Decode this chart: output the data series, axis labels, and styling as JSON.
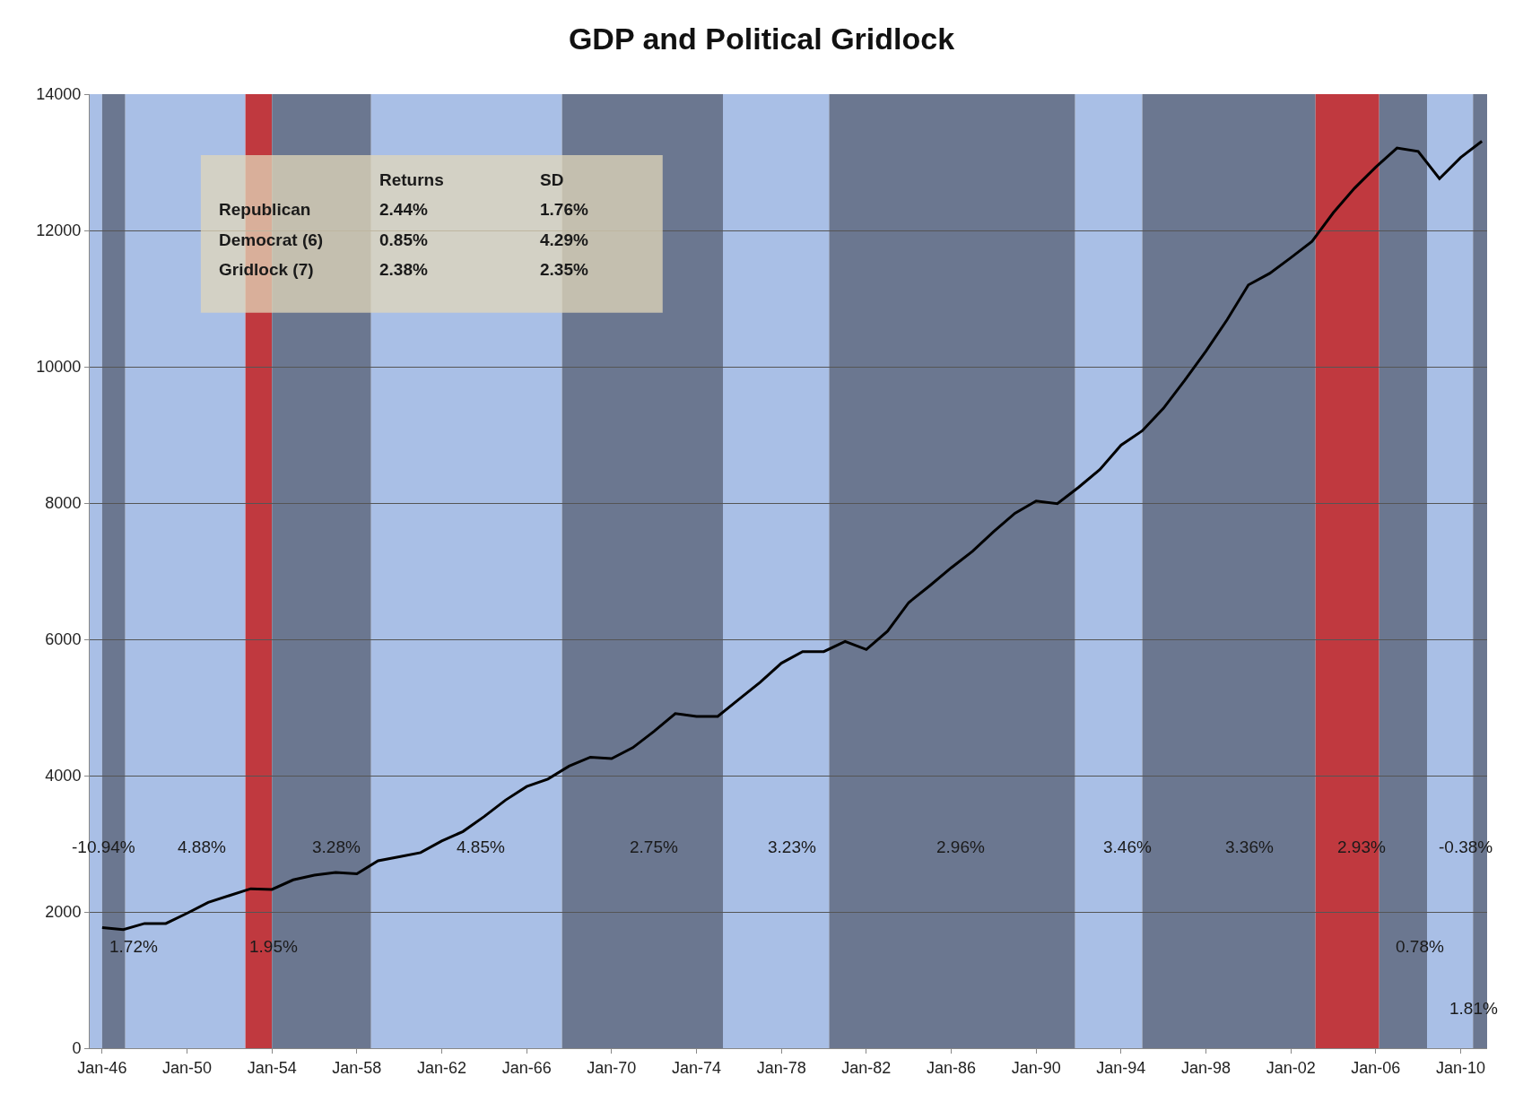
{
  "chart_data": {
    "type": "line",
    "title": "GDP and Political Gridlock",
    "x": [
      "1946-01",
      "1947-01",
      "1948-01",
      "1949-01",
      "1950-01",
      "1951-01",
      "1952-01",
      "1953-01",
      "1954-01",
      "1955-01",
      "1956-01",
      "1957-01",
      "1958-01",
      "1959-01",
      "1960-01",
      "1961-01",
      "1962-01",
      "1963-01",
      "1964-01",
      "1965-01",
      "1966-01",
      "1967-01",
      "1968-01",
      "1969-01",
      "1970-01",
      "1971-01",
      "1972-01",
      "1973-01",
      "1974-01",
      "1975-01",
      "1976-01",
      "1977-01",
      "1978-01",
      "1979-01",
      "1980-01",
      "1981-01",
      "1982-01",
      "1983-01",
      "1984-01",
      "1985-01",
      "1986-01",
      "1987-01",
      "1988-01",
      "1989-01",
      "1990-01",
      "1991-01",
      "1992-01",
      "1993-01",
      "1994-01",
      "1995-01",
      "1996-01",
      "1997-01",
      "1998-01",
      "1999-01",
      "2000-01",
      "2001-01",
      "2002-01",
      "2003-01",
      "2004-01",
      "2005-01",
      "2006-01",
      "2007-01",
      "2008-01",
      "2009-01",
      "2010-01",
      "2011-01"
    ],
    "series": [
      {
        "color": "#000000",
        "values": [
          1770,
          1740,
          1830,
          1830,
          1980,
          2140,
          2240,
          2340,
          2330,
          2470,
          2540,
          2580,
          2560,
          2750,
          2810,
          2870,
          3040,
          3180,
          3400,
          3640,
          3840,
          3950,
          4140,
          4270,
          4250,
          4410,
          4650,
          4910,
          4870,
          4870,
          5120,
          5370,
          5650,
          5820,
          5820,
          5970,
          5850,
          6120,
          6540,
          6790,
          7050,
          7290,
          7580,
          7850,
          8030,
          7990,
          8230,
          8490,
          8850,
          9060,
          9390,
          9800,
          10230,
          10690,
          11200,
          11370,
          11600,
          11840,
          12260,
          12620,
          12930,
          13210,
          13160,
          12760,
          13070,
          13310
        ]
      }
    ],
    "xlim": [
      "1945-06",
      "2011-04"
    ],
    "xticks": [
      {
        "value": "1946-01",
        "label": "Jan-46"
      },
      {
        "value": "1950-01",
        "label": "Jan-50"
      },
      {
        "value": "1954-01",
        "label": "Jan-54"
      },
      {
        "value": "1958-01",
        "label": "Jan-58"
      },
      {
        "value": "1962-01",
        "label": "Jan-62"
      },
      {
        "value": "1966-01",
        "label": "Jan-66"
      },
      {
        "value": "1970-01",
        "label": "Jan-70"
      },
      {
        "value": "1974-01",
        "label": "Jan-74"
      },
      {
        "value": "1978-01",
        "label": "Jan-78"
      },
      {
        "value": "1982-01",
        "label": "Jan-82"
      },
      {
        "value": "1986-01",
        "label": "Jan-86"
      },
      {
        "value": "1990-01",
        "label": "Jan-90"
      },
      {
        "value": "1994-01",
        "label": "Jan-94"
      },
      {
        "value": "1998-01",
        "label": "Jan-98"
      },
      {
        "value": "2002-01",
        "label": "Jan-02"
      },
      {
        "value": "2006-01",
        "label": "Jan-06"
      },
      {
        "value": "2010-01",
        "label": "Jan-10"
      }
    ],
    "ylim": [
      0,
      14000
    ],
    "yticks": [
      0,
      2000,
      4000,
      6000,
      8000,
      10000,
      12000,
      14000
    ],
    "grid": "y",
    "marker": "none",
    "line_style": "solid",
    "bands": [
      {
        "axis": "x",
        "from": "1945-06",
        "to": "1946-01",
        "color": "#a9bfe6"
      },
      {
        "axis": "x",
        "from": "1947-02",
        "to": "1952-10",
        "color": "#a9bfe6"
      },
      {
        "axis": "x",
        "from": "1958-09",
        "to": "1967-09",
        "color": "#a9bfe6"
      },
      {
        "axis": "x",
        "from": "1975-04",
        "to": "1980-04",
        "color": "#a9bfe6"
      },
      {
        "axis": "x",
        "from": "1991-11",
        "to": "1995-01",
        "color": "#a9bfe6"
      },
      {
        "axis": "x",
        "from": "2008-06",
        "to": "2010-08",
        "color": "#a9bfe6"
      },
      {
        "axis": "x",
        "from": "1946-01",
        "to": "1947-02",
        "color": "#6b7790"
      },
      {
        "axis": "x",
        "from": "1952-10",
        "to": "1954-01",
        "color": "#c0393f"
      },
      {
        "axis": "x",
        "from": "1954-01",
        "to": "1958-09",
        "color": "#6b7790"
      },
      {
        "axis": "x",
        "from": "1967-09",
        "to": "1975-04",
        "color": "#6b7790"
      },
      {
        "axis": "x",
        "from": "1980-04",
        "to": "1991-11",
        "color": "#6b7790"
      },
      {
        "axis": "x",
        "from": "1995-01",
        "to": "2003-03",
        "color": "#6b7790"
      },
      {
        "axis": "x",
        "from": "2003-03",
        "to": "2006-03",
        "color": "#c0393f"
      },
      {
        "axis": "x",
        "from": "2006-03",
        "to": "2008-06",
        "color": "#6b7790"
      },
      {
        "axis": "x",
        "from": "2010-08",
        "to": "2011-04",
        "color": "#6b7790"
      }
    ],
    "annotations": [
      "Returns",
      "SD",
      "Republican",
      "2.44%",
      "1.76%",
      "Democrat (6)",
      "0.85%",
      "4.29%",
      "Gridlock (7)",
      "2.38%",
      "2.35%",
      "-10.94%",
      "4.88%",
      "3.28%",
      "4.85%",
      "2.75%",
      "3.23%",
      "2.96%",
      "3.46%",
      "3.36%",
      "2.93%",
      "-0.38%",
      "1.72%",
      "1.95%",
      "0.78%",
      "1.81%"
    ]
  }
}
